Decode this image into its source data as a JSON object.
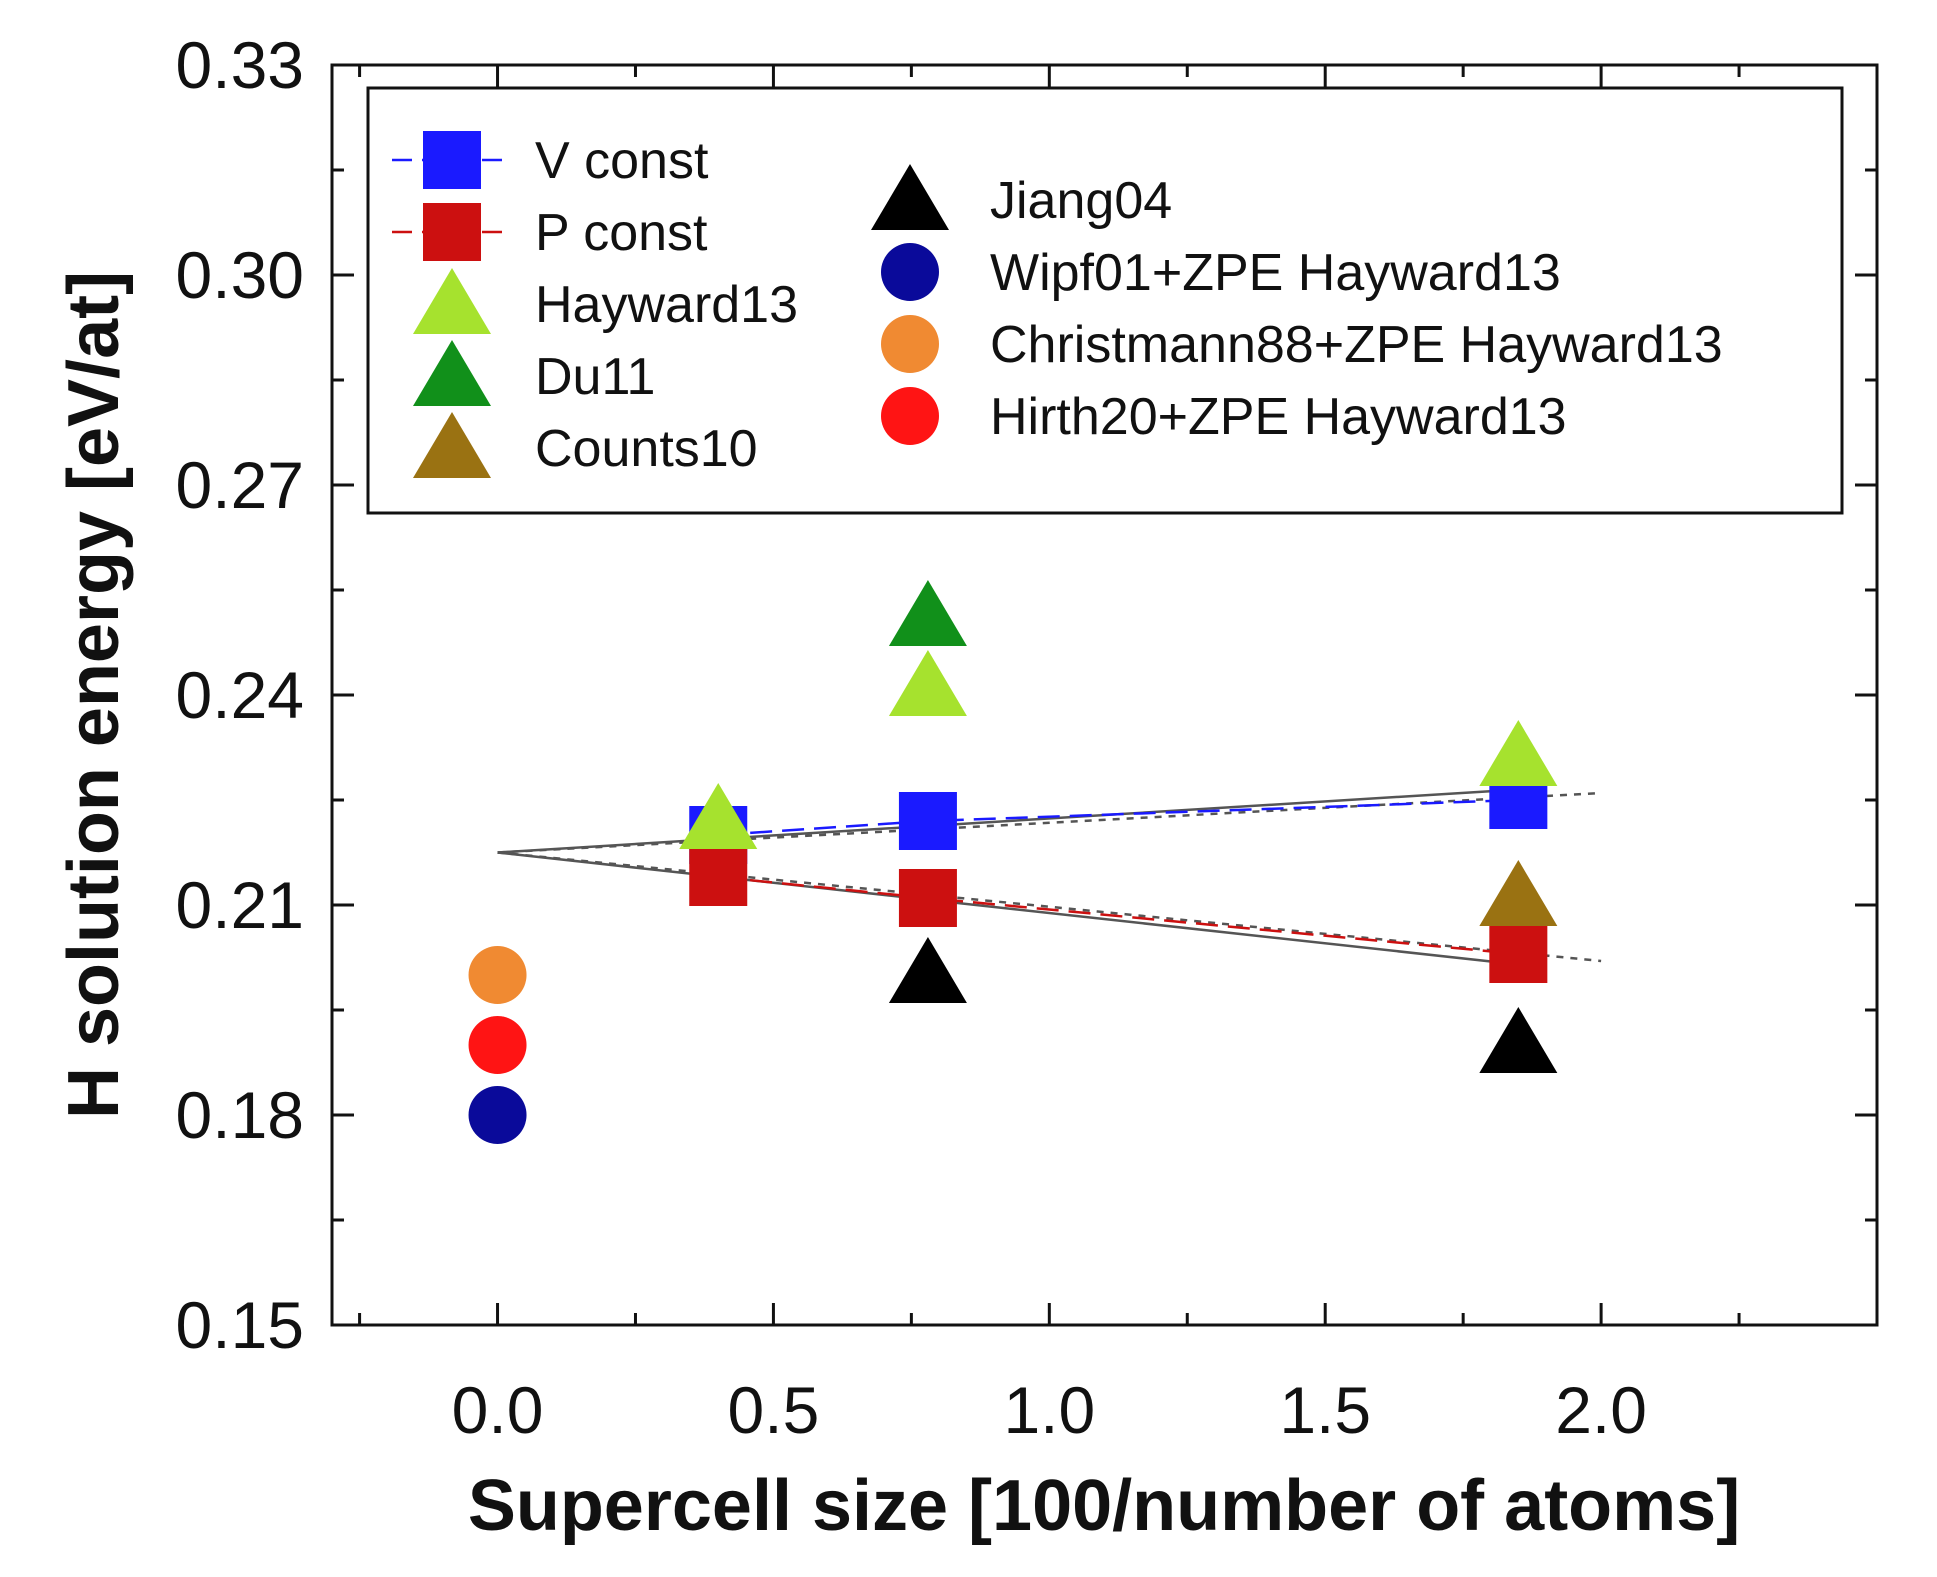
{
  "chart_data": {
    "type": "scatter",
    "title": "",
    "xlabel": "Supercell size [100/number of atoms]",
    "ylabel": "H solution energy [eV/at]",
    "xlim": [
      -0.3,
      2.5
    ],
    "ylim": [
      0.15,
      0.33
    ],
    "x_ticks": [
      0.0,
      0.5,
      1.0,
      1.5,
      2.0
    ],
    "x_tick_labels": [
      "0.0",
      "0.5",
      "1.0",
      "1.5",
      "2.0"
    ],
    "y_ticks": [
      0.15,
      0.18,
      0.21,
      0.24,
      0.27,
      0.3,
      0.33
    ],
    "y_tick_labels": [
      "0.15",
      "0.18",
      "0.21",
      "0.24",
      "0.27",
      "0.30",
      "0.33"
    ],
    "legend_position": "top",
    "series": [
      {
        "name": "V const",
        "marker": "square",
        "color": "#1a1aff",
        "line": true,
        "x": [
          0.4,
          0.78,
          1.85
        ],
        "y": [
          0.22,
          0.222,
          0.225
        ]
      },
      {
        "name": "P const",
        "marker": "square",
        "color": "#cc1010",
        "line": true,
        "x": [
          0.4,
          0.78,
          1.85
        ],
        "y": [
          0.214,
          0.211,
          0.203
        ]
      },
      {
        "name": "Hayward13",
        "marker": "triangle",
        "color": "#a6e22e",
        "x": [
          0.4,
          0.78,
          1.85
        ],
        "y": [
          0.222,
          0.241,
          0.231
        ]
      },
      {
        "name": "Du11",
        "marker": "triangle",
        "color": "#11901a",
        "x": [
          0.78
        ],
        "y": [
          0.251
        ]
      },
      {
        "name": "Counts10",
        "marker": "triangle",
        "color": "#9a7212",
        "x": [
          1.85
        ],
        "y": [
          0.211
        ]
      },
      {
        "name": "Jiang04",
        "marker": "triangle",
        "color": "#000000",
        "x": [
          0.78,
          1.85
        ],
        "y": [
          0.2,
          0.19
        ]
      },
      {
        "name": "Wipf01+ZPE Hayward13",
        "marker": "circle",
        "color": "#0a0a9a",
        "x": [
          0.0
        ],
        "y": [
          0.18
        ]
      },
      {
        "name": "Christmann88+ZPE Hayward13",
        "marker": "circle",
        "color": "#f08a32",
        "x": [
          0.0
        ],
        "y": [
          0.2
        ]
      },
      {
        "name": "Hirth20+ZPE Hayward13",
        "marker": "circle",
        "color": "#ff1414",
        "x": [
          0.0
        ],
        "y": [
          0.19
        ]
      }
    ],
    "fit_lines": [
      {
        "name": "V const fit",
        "style": "solid",
        "color": "#555555",
        "x": [
          0.0,
          1.85
        ],
        "y": [
          0.2175,
          0.2265
        ]
      },
      {
        "name": "V const extrapolation",
        "style": "dotted",
        "color": "#555555",
        "x": [
          0.0,
          2.0
        ],
        "y": [
          0.2175,
          0.226
        ]
      },
      {
        "name": "P const fit",
        "style": "solid",
        "color": "#555555",
        "x": [
          0.0,
          1.85
        ],
        "y": [
          0.2175,
          0.2015
        ]
      },
      {
        "name": "P const extrapolation",
        "style": "dotted",
        "color": "#555555",
        "x": [
          0.0,
          2.0
        ],
        "y": [
          0.2175,
          0.202
        ]
      }
    ]
  }
}
